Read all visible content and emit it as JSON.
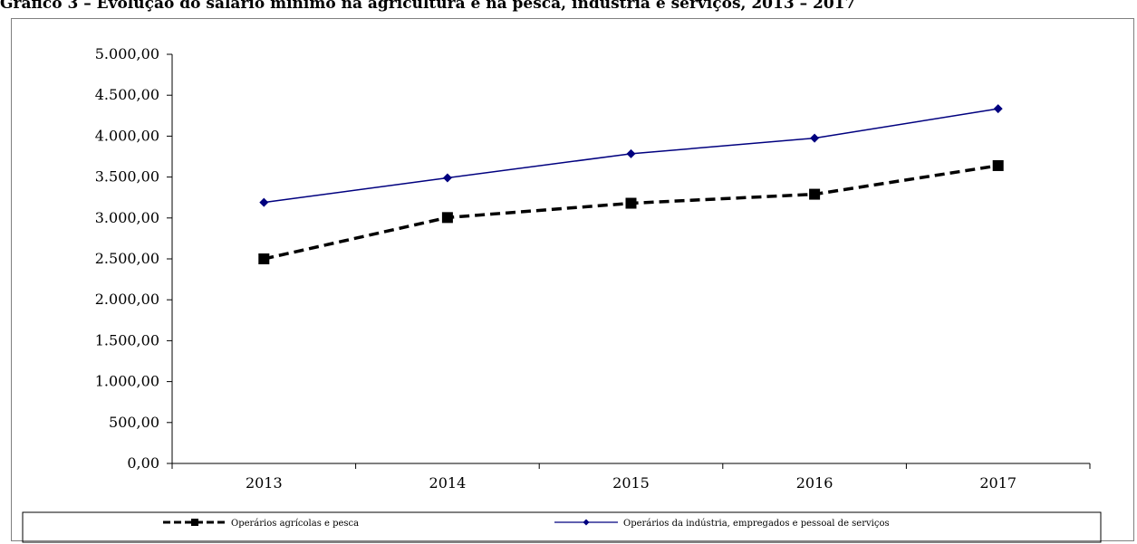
{
  "chart_data": {
    "type": "line",
    "title": "Gráfico 3 – Evolução do salário mínimo na agricultura e na pesca, indústria e serviços, 2013 – 2017",
    "categories": [
      "2013",
      "2014",
      "2015",
      "2016",
      "2017"
    ],
    "ylim": [
      0,
      5000
    ],
    "y_ticks": [
      "0,00",
      "500,00",
      "1.000,00",
      "1.500,00",
      "2.000,00",
      "2.500,00",
      "3.000,00",
      "3.500,00",
      "4.000,00",
      "4.500,00",
      "5.000,00"
    ],
    "grid": false,
    "legend_position": "bottom",
    "series": [
      {
        "name": "Operários agrícolas e pesca",
        "values": [
          2500,
          3005,
          3180,
          3290,
          3640
        ],
        "color": "#000000",
        "style": "dashed",
        "marker": "square"
      },
      {
        "name": "Operários da indústria, empregados e pessoal de serviços",
        "values": [
          3190,
          3490,
          3785,
          3975,
          4335
        ],
        "color": "#00007f",
        "style": "solid",
        "marker": "diamond"
      }
    ]
  }
}
